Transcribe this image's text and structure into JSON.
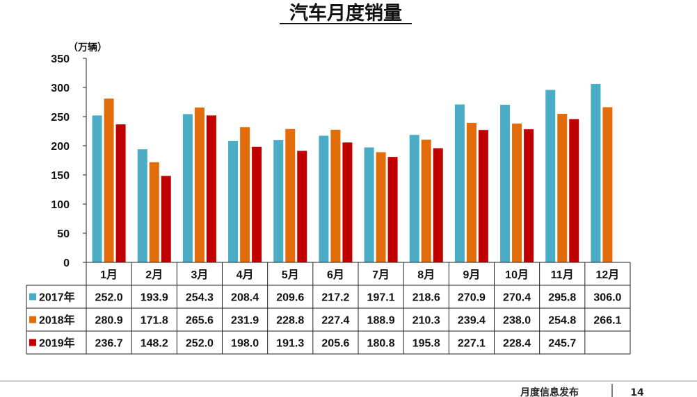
{
  "chart_data": {
    "type": "bar",
    "title": "汽车月度销量",
    "ylabel": "（万辆）",
    "xlabel": "",
    "ylim": [
      0,
      350
    ],
    "yticks": [
      0,
      50,
      100,
      150,
      200,
      250,
      300,
      350
    ],
    "categories": [
      "1月",
      "2月",
      "3月",
      "4月",
      "5月",
      "6月",
      "7月",
      "8月",
      "9月",
      "10月",
      "11月",
      "12月"
    ],
    "series": [
      {
        "name": "2017年",
        "color": "#4BACC6",
        "values": [
          252.0,
          193.9,
          254.3,
          208.4,
          209.6,
          217.2,
          197.1,
          218.6,
          270.9,
          270.4,
          295.8,
          306.0
        ],
        "labels": [
          "252.0",
          "193.9",
          "254.3",
          "208.4",
          "209.6",
          "217.2",
          "197.1",
          "218.6",
          "270.9",
          "270.4",
          "295.8",
          "306.0"
        ]
      },
      {
        "name": "2018年",
        "color": "#E36C0A",
        "values": [
          280.9,
          171.8,
          265.6,
          231.9,
          228.8,
          227.4,
          188.9,
          210.3,
          239.4,
          238.0,
          254.8,
          266.1
        ],
        "labels": [
          "280.9",
          "171.8",
          "265.6",
          "231.9",
          "228.8",
          "227.4",
          "188.9",
          "210.3",
          "239.4",
          "238.0",
          "254.8",
          "266.1"
        ]
      },
      {
        "name": "2019年",
        "color": "#C00000",
        "values": [
          236.7,
          148.2,
          252.0,
          198.0,
          191.3,
          205.6,
          180.8,
          195.8,
          227.1,
          228.4,
          245.7,
          null
        ],
        "labels": [
          "236.7",
          "148.2",
          "252.0",
          "198.0",
          "191.3",
          "205.6",
          "180.8",
          "195.8",
          "227.1",
          "228.4",
          "245.7",
          ""
        ]
      }
    ],
    "legend": "data-table"
  },
  "footer": {
    "text": "月度信息发布",
    "page_number": "14"
  }
}
